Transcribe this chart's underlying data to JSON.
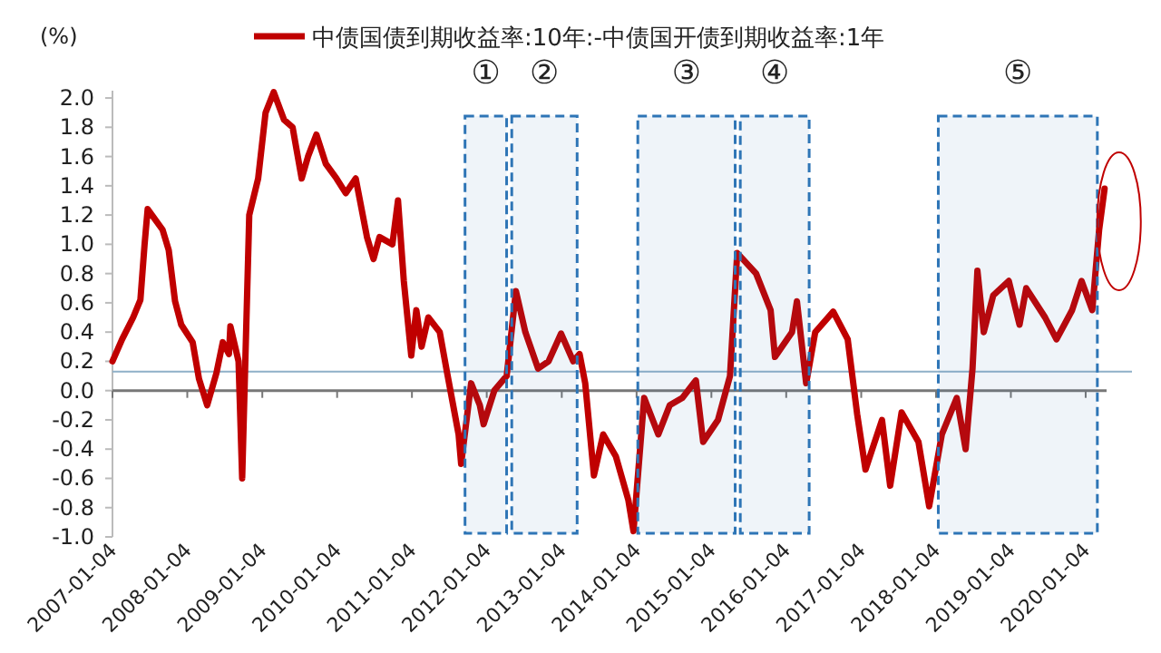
{
  "chart_data": {
    "type": "line",
    "ylabel": "(%)",
    "legend": "top",
    "x": [
      "2007-01-04",
      "2007-02-20",
      "2007-04-15",
      "2007-05-20",
      "2007-06-10",
      "2007-06-25",
      "2007-09-05",
      "2007-10-05",
      "2007-11-05",
      "2007-12-05",
      "2008-01-30",
      "2008-03-01",
      "2008-04-10",
      "2008-05-25",
      "2008-06-25",
      "2008-07-25",
      "2008-08-01",
      "2008-09-10",
      "2008-09-28",
      "2008-11-01",
      "2008-12-15",
      "2009-01-20",
      "2009-03-01",
      "2009-04-20",
      "2009-06-01",
      "2009-07-15",
      "2009-08-15",
      "2009-09-25",
      "2009-11-10",
      "2010-01-01",
      "2010-02-15",
      "2010-04-05",
      "2010-05-30",
      "2010-07-01",
      "2010-07-30",
      "2010-10-01",
      "2010-10-28",
      "2010-11-25",
      "2011-01-01",
      "2011-01-25",
      "2011-02-20",
      "2011-03-25",
      "2011-05-20",
      "2011-06-25",
      "2011-08-20",
      "2011-09-01",
      "2011-10-20",
      "2011-12-01",
      "2011-12-20",
      "2012-02-10",
      "2012-04-10",
      "2012-05-25",
      "2012-07-10",
      "2012-09-10",
      "2012-11-01",
      "2013-01-01",
      "2013-03-01",
      "2013-04-01",
      "2013-04-28",
      "2013-06-10",
      "2013-07-25",
      "2013-09-25",
      "2013-11-25",
      "2013-12-20",
      "2014-02-10",
      "2014-04-20",
      "2014-06-15",
      "2014-08-15",
      "2014-10-20",
      "2014-11-25",
      "2015-02-05",
      "2015-04-05",
      "2015-05-10",
      "2015-08-10",
      "2015-10-20",
      "2015-11-10",
      "2016-02-01",
      "2016-02-25",
      "2016-04-10",
      "2016-05-25",
      "2016-08-20",
      "2016-10-30",
      "2016-12-15",
      "2017-01-25",
      "2017-04-15",
      "2017-05-25",
      "2017-07-20",
      "2017-10-10",
      "2017-12-01",
      "2018-02-01",
      "2018-04-15",
      "2018-05-28",
      "2018-07-01",
      "2018-07-25",
      "2018-08-25",
      "2018-10-10",
      "2018-12-25",
      "2019-02-15",
      "2019-03-20",
      "2019-06-20",
      "2019-08-15",
      "2019-10-30",
      "2019-12-15",
      "2020-02-05",
      "2020-03-10",
      "2020-04-05"
    ],
    "series": [
      {
        "name": "中债国债到期收益率:10年:-中债国开债到期收益率:1年",
        "color": "#c00000",
        "values": [
          0.2,
          0.35,
          0.5,
          0.62,
          1.0,
          1.24,
          1.1,
          0.96,
          0.61,
          0.45,
          0.33,
          0.08,
          -0.1,
          0.12,
          0.33,
          0.25,
          0.44,
          0.2,
          -0.6,
          1.2,
          1.45,
          1.9,
          2.04,
          1.85,
          1.8,
          1.45,
          1.6,
          1.75,
          1.55,
          1.45,
          1.35,
          1.45,
          1.05,
          0.9,
          1.05,
          1.0,
          1.3,
          0.75,
          0.24,
          0.55,
          0.3,
          0.5,
          0.4,
          0.12,
          -0.3,
          -0.5,
          0.05,
          -0.1,
          -0.23,
          0.0,
          0.1,
          0.68,
          0.4,
          0.15,
          0.2,
          0.39,
          0.2,
          0.25,
          0.05,
          -0.58,
          -0.3,
          -0.45,
          -0.75,
          -0.96,
          -0.05,
          -0.3,
          -0.1,
          -0.05,
          0.07,
          -0.35,
          -0.2,
          0.1,
          0.94,
          0.8,
          0.55,
          0.23,
          0.4,
          0.61,
          0.05,
          0.4,
          0.54,
          0.35,
          -0.16,
          -0.54,
          -0.2,
          -0.65,
          -0.15,
          -0.35,
          -0.79,
          -0.3,
          -0.05,
          -0.4,
          0.15,
          0.82,
          0.4,
          0.65,
          0.75,
          0.45,
          0.7,
          0.5,
          0.35,
          0.55,
          0.75,
          0.55,
          1.1,
          1.38
        ]
      }
    ],
    "xlim": [
      "2007-01-04",
      "2020-04-15"
    ],
    "xticks": [
      "2007-01-04",
      "2008-01-04",
      "2009-01-04",
      "2010-01-04",
      "2011-01-04",
      "2012-01-04",
      "2013-01-04",
      "2014-01-04",
      "2015-01-04",
      "2016-01-04",
      "2017-01-04",
      "2018-01-04",
      "2019-01-04",
      "2020-01-04"
    ],
    "ylim": [
      -1.0,
      2.05
    ],
    "yticks": [
      {
        "value": -1,
        "label": "-1.0"
      },
      {
        "value": -0.8,
        "label": "-0.8"
      },
      {
        "value": -0.6,
        "label": "-0.6"
      },
      {
        "value": -0.4,
        "label": "-0.4"
      },
      {
        "value": -0.2,
        "label": "-0.2"
      },
      {
        "value": 0,
        "label": "0.0"
      },
      {
        "value": 0.2,
        "label": "0.2"
      },
      {
        "value": 0.4,
        "label": "0.4"
      },
      {
        "value": 0.6,
        "label": "0.6"
      },
      {
        "value": 0.8,
        "label": "0.8"
      },
      {
        "value": 1,
        "label": "1.0"
      },
      {
        "value": 1.2,
        "label": "1.2"
      },
      {
        "value": 1.4,
        "label": "1.4"
      },
      {
        "value": 1.6,
        "label": "1.6"
      },
      {
        "value": 1.8,
        "label": "1.8"
      },
      {
        "value": 2,
        "label": "2.0"
      }
    ],
    "ref_lines": [
      {
        "axis": "y",
        "value": 0.13,
        "color": "#8fb0c8"
      }
    ],
    "bands": [
      {
        "axis": "x",
        "from": "2011-09-20",
        "to": "2012-04-10",
        "label": "①",
        "color": "#2e75b6"
      },
      {
        "axis": "x",
        "from": "2012-05-05",
        "to": "2013-03-20",
        "label": "②",
        "color": "#2e75b6"
      },
      {
        "axis": "x",
        "from": "2014-01-10",
        "to": "2015-04-30",
        "label": "③",
        "color": "#2e75b6"
      },
      {
        "axis": "x",
        "from": "2015-05-25",
        "to": "2016-04-25",
        "label": "④",
        "color": "#2e75b6"
      },
      {
        "axis": "x",
        "from": "2018-01-15",
        "to": "2020-03-01",
        "label": "⑤",
        "color": "#2e75b6"
      }
    ],
    "marker": "none",
    "line_style": "solid"
  }
}
